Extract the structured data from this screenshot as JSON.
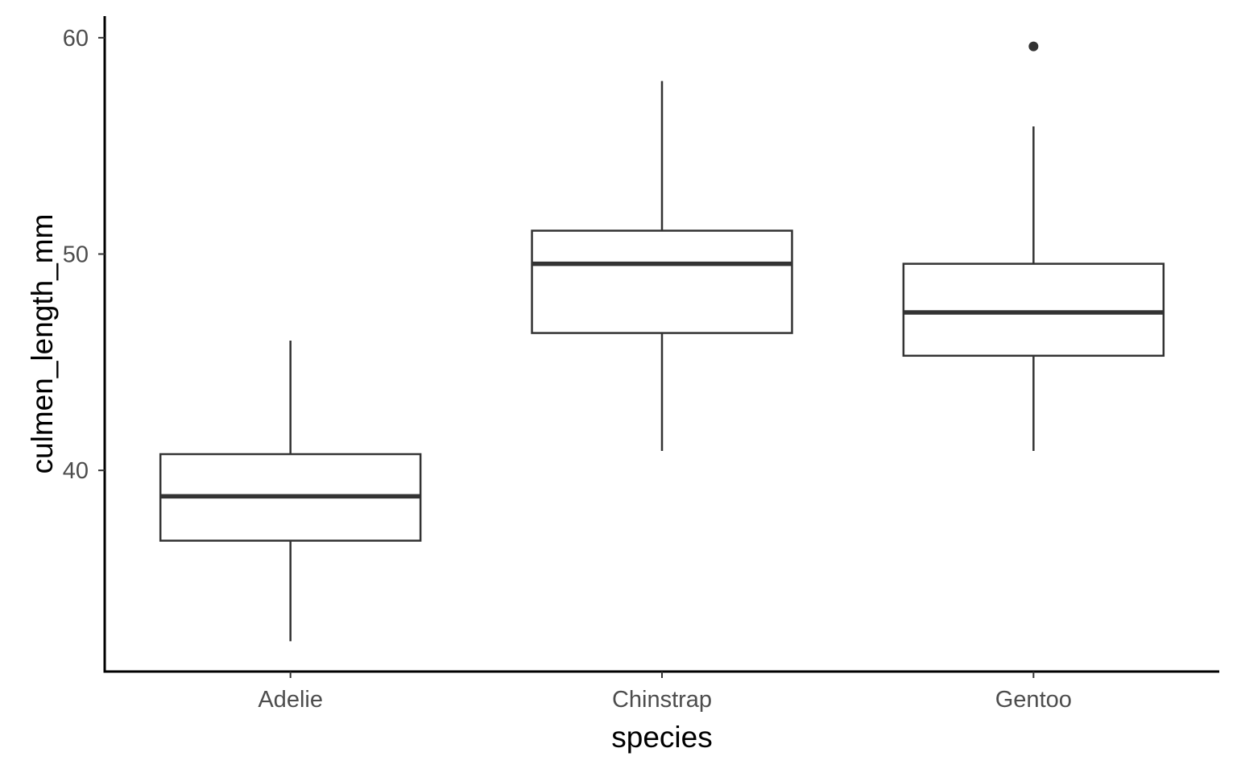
{
  "chart_data": {
    "type": "boxplot",
    "title": "",
    "xlabel": "species",
    "ylabel": "culmen_length_mm",
    "categories": [
      "Adelie",
      "Chinstrap",
      "Gentoo"
    ],
    "boxes": [
      {
        "category": "Adelie",
        "whisker_low": 32.1,
        "q1": 36.75,
        "median": 38.8,
        "q3": 40.75,
        "whisker_high": 46.0,
        "outliers": []
      },
      {
        "category": "Chinstrap",
        "whisker_low": 40.9,
        "q1": 46.35,
        "median": 49.55,
        "q3": 51.08,
        "whisker_high": 58.0,
        "outliers": []
      },
      {
        "category": "Gentoo",
        "whisker_low": 40.9,
        "q1": 45.3,
        "median": 47.3,
        "q3": 49.55,
        "whisker_high": 55.9,
        "outliers": [
          59.6
        ]
      }
    ],
    "y_ticks": [
      40,
      50,
      60
    ],
    "ylim": [
      30.7,
      61.0
    ],
    "grid": false,
    "legend": "none",
    "colors": {
      "box_stroke": "#333333",
      "box_fill": "#ffffff",
      "axis": "#000000",
      "tick_text": "#4d4d4d"
    }
  }
}
